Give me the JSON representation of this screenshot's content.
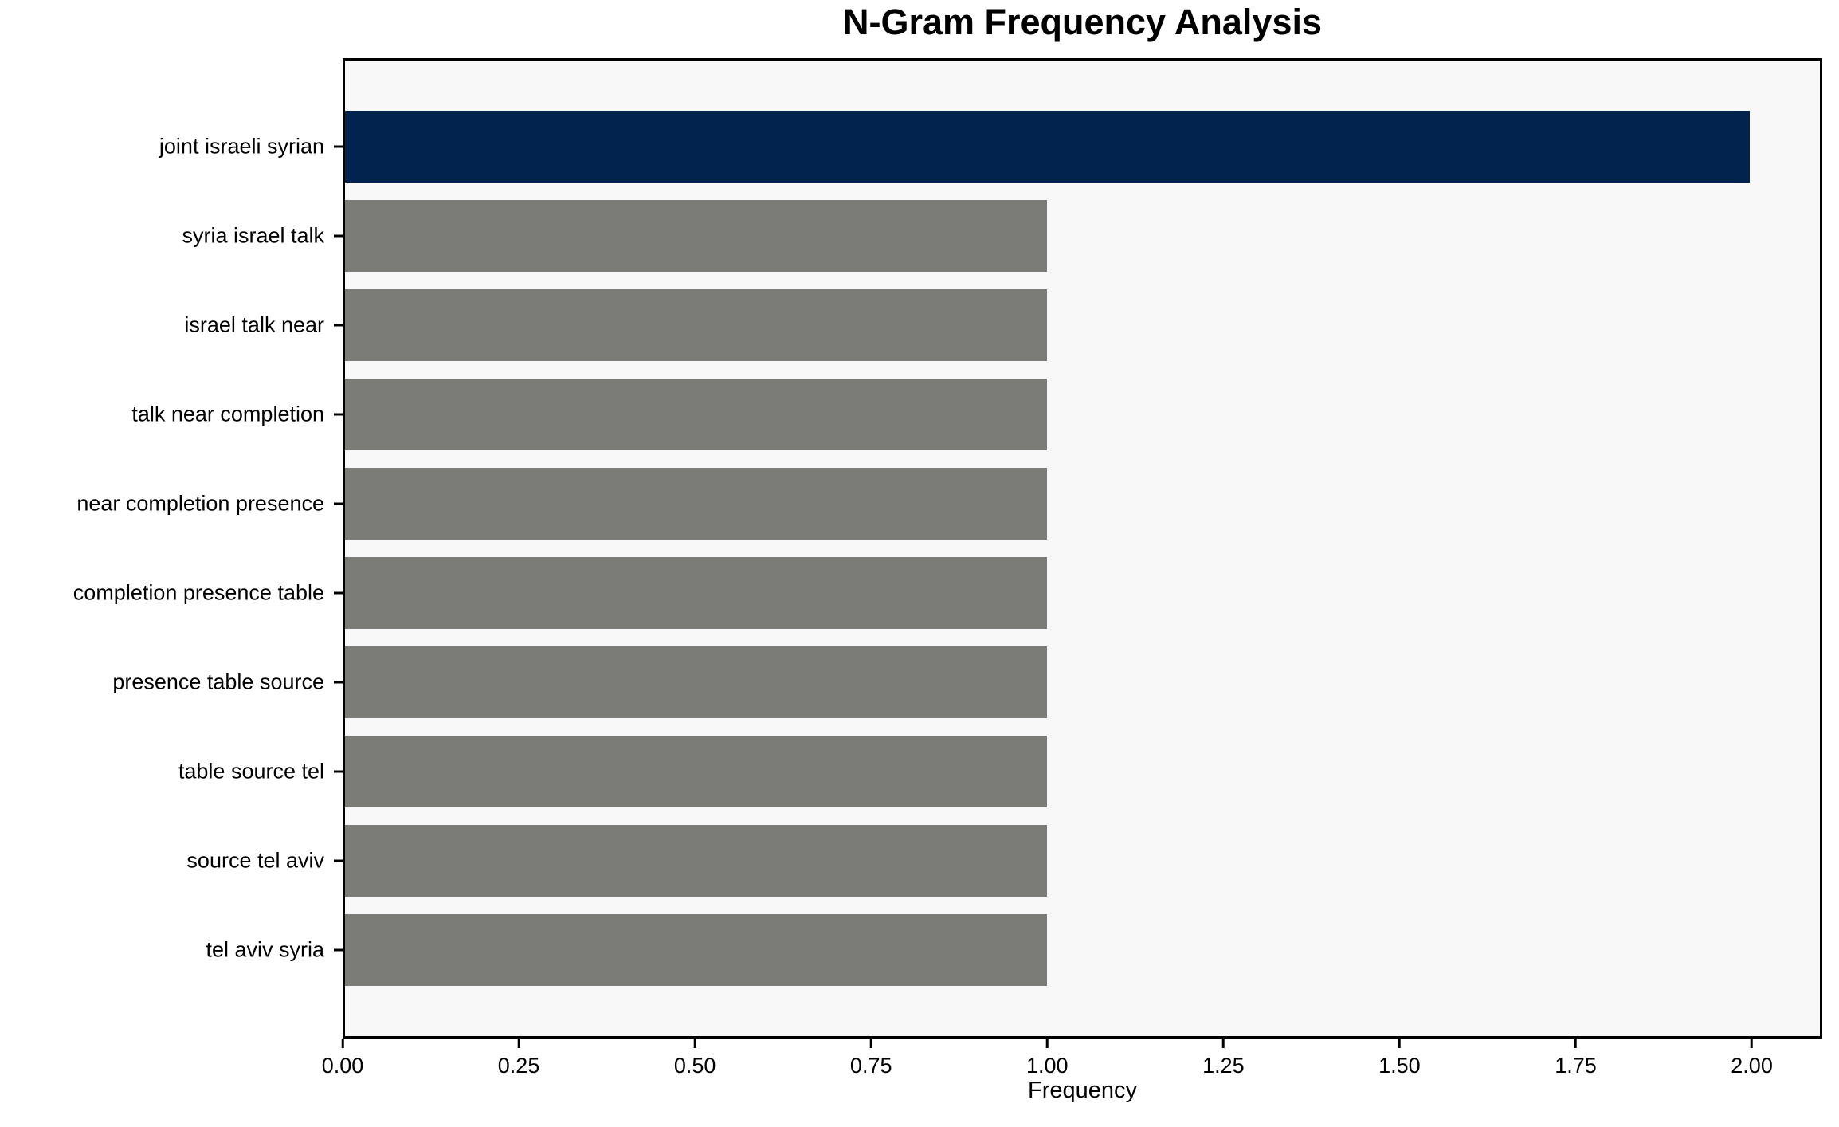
{
  "chart_data": {
    "type": "bar",
    "orientation": "horizontal",
    "title": "N-Gram Frequency Analysis",
    "xlabel": "Frequency",
    "categories": [
      "joint israeli syrian",
      "syria israel talk",
      "israel talk near",
      "talk near completion",
      "near completion presence",
      "completion presence table",
      "presence table source",
      "table source tel",
      "source tel aviv",
      "tel aviv syria"
    ],
    "values": [
      2,
      1,
      1,
      1,
      1,
      1,
      1,
      1,
      1,
      1
    ],
    "bar_colors": [
      "#01234e",
      "#7b7b78",
      "#7b7b78",
      "#7b7b78",
      "#7b7b78",
      "#7b7b78",
      "#7b7b78",
      "#7b7b78",
      "#7b7b78",
      "#7b7b78"
    ],
    "highlight_color": "#01234e",
    "default_bar_color": "#7b7b78",
    "xlim": [
      0,
      2.1
    ],
    "xtick_values": [
      0.0,
      0.25,
      0.5,
      0.75,
      1.0,
      1.25,
      1.5,
      1.75,
      2.0
    ],
    "xtick_labels": [
      "0.00",
      "0.25",
      "0.50",
      "0.75",
      "1.00",
      "1.25",
      "1.50",
      "1.75",
      "2.00"
    ],
    "grid": false,
    "legend": "none",
    "plot_background": "#f8f8f8",
    "figure_background": "#ffffff",
    "axis_color": "#000000"
  }
}
